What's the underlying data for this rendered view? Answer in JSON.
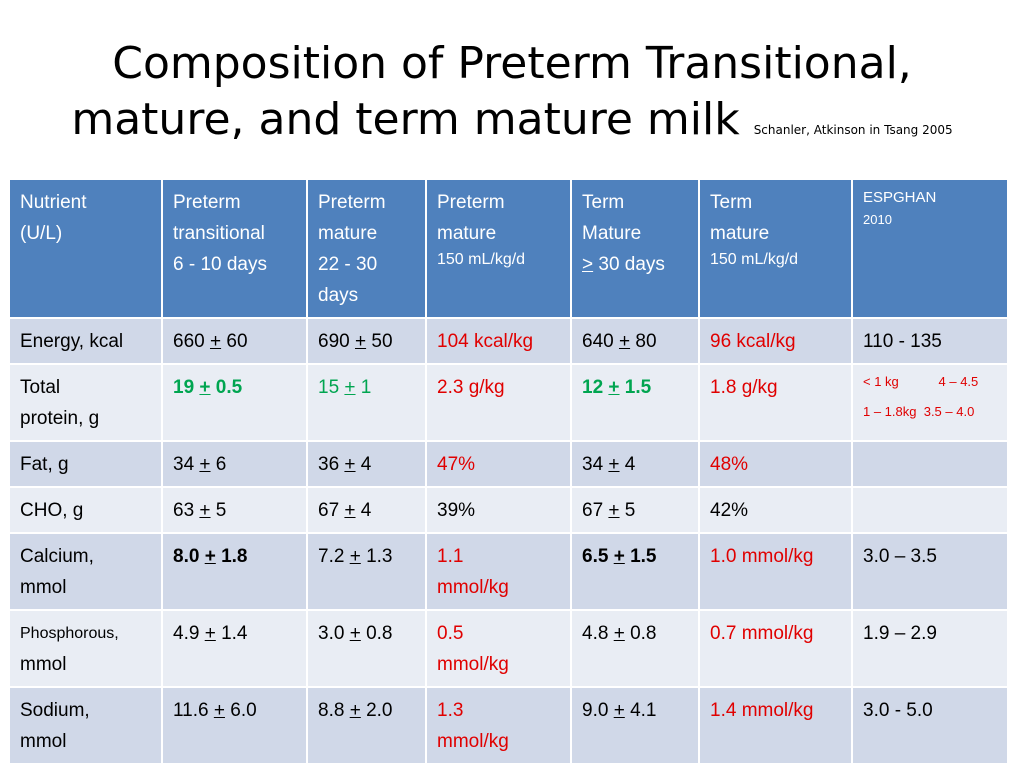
{
  "slide": {
    "title_line1": "Composition of Preterm Transitional,",
    "title_line2": "mature, and term mature milk",
    "citation": "Schanler, Atkinson in Tsang 2005"
  },
  "table": {
    "headers": {
      "nutrient": [
        "Nutrient",
        "(U/L)"
      ],
      "preterm_transitional": [
        "Preterm",
        "transitional",
        "6  - 10 days"
      ],
      "preterm_mature": [
        "Preterm",
        "mature",
        "22  - 30",
        "days"
      ],
      "preterm_mature_per_kg": [
        "Preterm",
        "mature",
        "150 mL/kg/d"
      ],
      "term_mature": [
        "Term",
        "Mature",
        ">",
        "30 days"
      ],
      "term_mature_per_kg": [
        "Term",
        "mature",
        "150 mL/kg/d"
      ],
      "espghan": [
        "ESPGHAN",
        "2010"
      ]
    },
    "rows": [
      {
        "nutrient": "Energy, kcal",
        "pt_a": "660 ",
        "pt_pm": "+",
        "pt_b": " 60",
        "pm_a": "690 ",
        "pm_pm": "+",
        "pm_b": " 50",
        "pmk": "104 kcal/kg",
        "tm_a": "640 ",
        "tm_pm": "+",
        "tm_b": " 80",
        "tmk": "96 kcal/kg",
        "esp": "110 - 135"
      },
      {
        "nutrient_1": "Total",
        "nutrient_2": "protein, g",
        "pt_a": "19 ",
        "pt_pm": "+",
        "pt_b": " 0.5",
        "pm_a": "15 ",
        "pm_pm": "+",
        "pm_b": " 1",
        "pmk": "2.3 g/kg",
        "tm_a": "12 ",
        "tm_pm": "+",
        "tm_b": " 1.5",
        "tmk": "1.8 g/kg",
        "esp_1": "< 1 kg           4 – 4.5",
        "esp_2": "1 – 1.8kg  3.5 – 4.0"
      },
      {
        "nutrient": "Fat, g",
        "pt_a": "34 ",
        "pt_pm": "+",
        "pt_b": " 6",
        "pm_a": "36 ",
        "pm_pm": "+",
        "pm_b": " 4",
        "pmk": "47%",
        "tm_a": "34 ",
        "tm_pm": "+",
        "tm_b": " 4",
        "tmk": "48%",
        "esp": ""
      },
      {
        "nutrient": "CHO, g",
        "pt_a": "63 ",
        "pt_pm": "+",
        "pt_b": " 5",
        "pm_a": "67 ",
        "pm_pm": "+",
        "pm_b": " 4",
        "pmk": "39%",
        "tm_a": "67 ",
        "tm_pm": "+",
        "tm_b": " 5",
        "tmk": "42%",
        "esp": ""
      },
      {
        "nutrient_1": "Calcium,",
        "nutrient_2": "mmol",
        "pt_a": "8.0 ",
        "pt_pm": "+",
        "pt_b": " 1.8",
        "pm_a": "7.2 ",
        "pm_pm": "+",
        "pm_b": " 1.3",
        "pmk_1": "1.1",
        "pmk_2": "mmol/kg",
        "tm_a": "6.5 ",
        "tm_pm": "+",
        "tm_b": " 1.5",
        "tmk": "1.0 mmol/kg",
        "esp": "3.0 – 3.5"
      },
      {
        "nutrient_1": "Phosphorous,",
        "nutrient_2": "mmol",
        "pt_a": "4.9 ",
        "pt_pm": "+",
        "pt_b": " 1.4",
        "pm_a": "3.0 ",
        "pm_pm": "+",
        "pm_b": " 0.8",
        "pmk_1": "0.5",
        "pmk_2": "mmol/kg",
        "tm_a": "4.8 ",
        "tm_pm": "+",
        "tm_b": " 0.8",
        "tmk": "0.7 mmol/kg",
        "esp": "1.9 – 2.9"
      },
      {
        "nutrient_1": "Sodium,",
        "nutrient_2": "mmol",
        "pt_a": "11.6 ",
        "pt_pm": "+",
        "pt_b": " 6.0",
        "pm_a": "8.8 ",
        "pm_pm": "+",
        "pm_b": " 2.0",
        "pmk_1": "1.3",
        "pmk_2": "mmol/kg",
        "tm_a": "9.0 ",
        "tm_pm": "+",
        "tm_b": " 4.1",
        "tmk": "1.4 mmol/kg",
        "esp": "3.0 - 5.0"
      }
    ]
  },
  "colors": {
    "header_bg": "#4f81bd",
    "row_dark": "#d0d8e8",
    "row_light": "#e9edf4",
    "per_kg_text": "#e00000",
    "protein_highlight": "#00a550"
  }
}
